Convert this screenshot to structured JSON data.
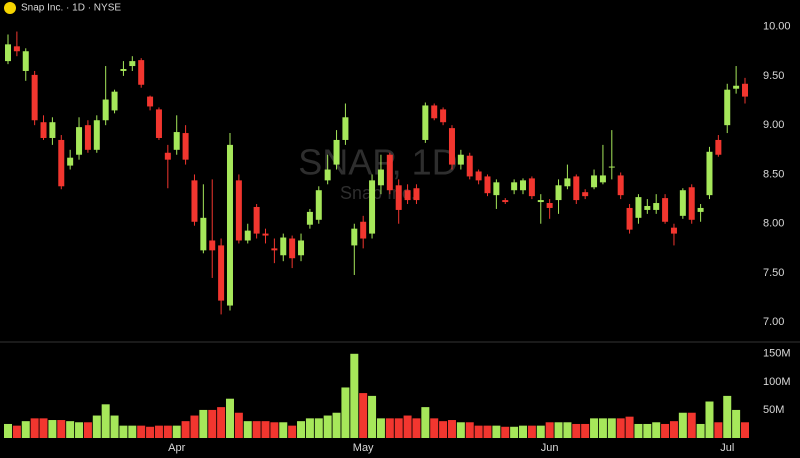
{
  "chart_data": {
    "type": "candlestick",
    "title": "Snap Inc. · 1D · NYSE",
    "watermark": "SNAP, 1D",
    "watermark_subtitle": "Snap Inc.",
    "up_color": "#a6e75a",
    "down_color": "#f2362f",
    "categories": [
      null,
      null,
      null,
      null,
      null,
      null,
      null,
      null,
      null,
      null,
      null,
      null,
      null,
      null,
      null,
      null,
      null,
      null,
      null,
      "Apr",
      null,
      null,
      null,
      null,
      null,
      null,
      null,
      null,
      null,
      null,
      null,
      null,
      null,
      null,
      null,
      null,
      null,
      null,
      null,
      null,
      "May",
      null,
      null,
      null,
      null,
      null,
      null,
      null,
      null,
      null,
      null,
      null,
      null,
      null,
      null,
      null,
      null,
      null,
      null,
      null,
      null,
      "Jun",
      null,
      null,
      null,
      null,
      null,
      null,
      null,
      null,
      null,
      null,
      null,
      null,
      null,
      null,
      null,
      null,
      null,
      null,
      null,
      "Jul",
      null,
      null
    ],
    "open": [
      9.65,
      9.8,
      9.55,
      9.51,
      9.03,
      8.87,
      8.85,
      8.59,
      8.7,
      9.0,
      8.75,
      9.05,
      9.15,
      9.55,
      9.6,
      9.66,
      9.29,
      9.16,
      8.72,
      8.75,
      8.92,
      8.44,
      7.73,
      7.83,
      7.78,
      7.17,
      8.44,
      7.83,
      8.17,
      7.9,
      7.75,
      7.68,
      7.85,
      7.68,
      7.99,
      8.04,
      8.44,
      8.6,
      8.85,
      7.78,
      8.02,
      7.9,
      8.39,
      8.7,
      8.39,
      8.34,
      8.36,
      8.85,
      9.2,
      9.16,
      8.97,
      8.6,
      8.69,
      8.53,
      8.48,
      8.29,
      8.24,
      8.34,
      8.34,
      8.46,
      8.22,
      8.21,
      8.24,
      8.38,
      8.48,
      8.32,
      8.37,
      8.42,
      8.57,
      8.49,
      8.16,
      8.06,
      8.14,
      8.14,
      8.26,
      7.96,
      8.08,
      8.37,
      8.12,
      8.29,
      8.85,
      9.0,
      9.37,
      9.42
    ],
    "high": [
      9.92,
      9.95,
      9.78,
      9.55,
      9.1,
      9.08,
      8.9,
      8.75,
      9.08,
      9.05,
      9.1,
      9.6,
      9.36,
      9.65,
      9.7,
      9.68,
      9.3,
      9.18,
      8.8,
      9.1,
      9.0,
      8.5,
      8.4,
      8.45,
      7.85,
      8.92,
      8.5,
      8.0,
      8.2,
      7.95,
      7.85,
      7.9,
      7.88,
      7.9,
      8.15,
      8.38,
      8.7,
      8.95,
      9.22,
      8.0,
      8.08,
      8.5,
      8.7,
      8.72,
      8.45,
      8.4,
      8.4,
      9.23,
      9.22,
      9.18,
      9.0,
      8.75,
      8.72,
      8.55,
      8.5,
      8.45,
      8.26,
      8.45,
      8.46,
      8.48,
      8.3,
      8.25,
      8.45,
      8.6,
      8.5,
      8.35,
      8.55,
      8.8,
      8.95,
      8.52,
      8.2,
      8.3,
      8.25,
      8.3,
      8.3,
      8.0,
      8.36,
      8.4,
      8.2,
      8.78,
      8.9,
      9.42,
      9.6,
      9.48
    ],
    "low": [
      9.62,
      9.7,
      9.45,
      9.0,
      8.85,
      8.8,
      8.35,
      8.55,
      8.65,
      8.72,
      8.72,
      9.0,
      9.12,
      9.5,
      9.55,
      9.38,
      9.15,
      8.85,
      8.36,
      8.7,
      8.6,
      7.98,
      7.7,
      7.45,
      7.08,
      7.12,
      7.8,
      7.8,
      7.85,
      7.8,
      7.6,
      7.62,
      7.55,
      7.62,
      7.95,
      8.0,
      8.4,
      8.55,
      8.8,
      7.48,
      7.75,
      7.85,
      8.3,
      8.3,
      8.0,
      8.2,
      8.2,
      8.82,
      9.05,
      9.0,
      8.55,
      8.55,
      8.45,
      8.4,
      8.28,
      8.15,
      8.2,
      8.3,
      8.3,
      8.25,
      8.0,
      8.05,
      8.1,
      8.35,
      8.2,
      8.25,
      8.35,
      8.4,
      8.45,
      8.25,
      7.9,
      8.0,
      8.1,
      8.1,
      8.0,
      7.78,
      8.05,
      8.0,
      8.02,
      8.25,
      8.68,
      8.92,
      9.32,
      9.22
    ],
    "close": [
      9.82,
      9.75,
      9.75,
      9.05,
      8.87,
      9.03,
      8.38,
      8.67,
      8.98,
      8.75,
      9.05,
      9.26,
      9.34,
      9.57,
      9.65,
      9.41,
      9.19,
      8.87,
      8.65,
      8.93,
      8.65,
      8.02,
      8.06,
      7.73,
      7.22,
      8.8,
      7.83,
      7.93,
      7.9,
      7.88,
      7.73,
      7.86,
      7.65,
      7.83,
      8.12,
      8.34,
      8.55,
      8.85,
      9.08,
      7.95,
      7.85,
      8.44,
      8.55,
      8.34,
      8.14,
      8.24,
      8.24,
      9.2,
      9.07,
      9.03,
      8.6,
      8.7,
      8.48,
      8.44,
      8.31,
      8.42,
      8.22,
      8.42,
      8.44,
      8.28,
      8.24,
      8.16,
      8.39,
      8.46,
      8.24,
      8.28,
      8.49,
      8.49,
      8.58,
      8.29,
      7.94,
      8.27,
      8.18,
      8.21,
      8.02,
      7.9,
      8.34,
      8.04,
      8.16,
      8.73,
      8.7,
      9.36,
      9.4,
      9.29
    ],
    "volume": [
      25,
      22,
      30,
      35,
      35,
      32,
      32,
      30,
      28,
      28,
      40,
      60,
      40,
      22,
      22,
      22,
      20,
      22,
      22,
      22,
      30,
      40,
      50,
      50,
      55,
      70,
      45,
      30,
      30,
      30,
      28,
      28,
      22,
      30,
      35,
      35,
      40,
      45,
      90,
      150,
      80,
      75,
      35,
      35,
      35,
      40,
      35,
      55,
      35,
      30,
      32,
      28,
      28,
      22,
      22,
      22,
      20,
      20,
      22,
      22,
      22,
      28,
      28,
      28,
      25,
      25,
      35,
      35,
      35,
      35,
      38,
      25,
      25,
      28,
      25,
      30,
      45,
      45,
      25,
      65,
      28,
      75,
      50,
      28
    ],
    "ylim": [
      6.8,
      10.27
    ],
    "yticks": [
      {
        "value": 10,
        "label": "10.00"
      },
      {
        "value": 9.5,
        "label": "9.50"
      },
      {
        "value": 9,
        "label": "9.00"
      },
      {
        "value": 8.5,
        "label": "8.50"
      },
      {
        "value": 8,
        "label": "8.00"
      },
      {
        "value": 7.5,
        "label": "7.50"
      },
      {
        "value": 7,
        "label": "7.00"
      }
    ],
    "volume_ylim": [
      0,
      171
    ],
    "volume_ticks": [
      {
        "value": 150,
        "label": "150M"
      },
      {
        "value": 100,
        "label": "100M"
      },
      {
        "value": 50,
        "label": "50M"
      }
    ],
    "grid": false
  }
}
